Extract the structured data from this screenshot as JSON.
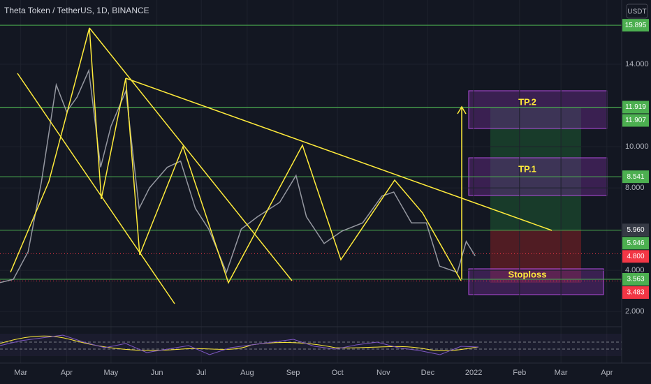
{
  "chart_data": {
    "type": "line",
    "title": "Theta Token / TetherUS, 1D, BINANCE",
    "y_unit": "USDT",
    "x": [
      -14,
      -5,
      5,
      14,
      24,
      31,
      38,
      46,
      54,
      61,
      71,
      80,
      87,
      99,
      108,
      118,
      127,
      139,
      149,
      160,
      175,
      186,
      193,
      205,
      217,
      231,
      244,
      252,
      264,
      274,
      283,
      295,
      301,
      307
    ],
    "series": [
      {
        "color": "#9598a1",
        "values": [
          3.4,
          3.56,
          4.9,
          8.3,
          13,
          11.7,
          12.4,
          13.7,
          9,
          11,
          12.7,
          7,
          8,
          9,
          9.3,
          7,
          6,
          3.9,
          6,
          6.6,
          7.3,
          8.6,
          6.6,
          5.3,
          5.9,
          6.3,
          7.6,
          7.8,
          6.3,
          6.3,
          4.2,
          3.9,
          5.4,
          4.7
        ]
      }
    ],
    "xlim": [
      -14,
      406
    ],
    "xticks": [
      {
        "value": 0,
        "label": "Mar"
      },
      {
        "value": 31,
        "label": "Apr"
      },
      {
        "value": 61,
        "label": "May"
      },
      {
        "value": 92,
        "label": "Jun"
      },
      {
        "value": 122,
        "label": "Jul"
      },
      {
        "value": 153,
        "label": "Aug"
      },
      {
        "value": 184,
        "label": "Sep"
      },
      {
        "value": 214,
        "label": "Oct"
      },
      {
        "value": 245,
        "label": "Nov"
      },
      {
        "value": 275,
        "label": "Dec"
      },
      {
        "value": 306,
        "label": "2022"
      },
      {
        "value": 337,
        "label": "Feb"
      },
      {
        "value": 365,
        "label": "Mar"
      },
      {
        "value": 396,
        "label": "Apr"
      }
    ],
    "ylim": [
      1.36,
      17.12
    ],
    "yticks": [
      {
        "value": 2,
        "label": "2.000"
      },
      {
        "value": 4,
        "label": "4.000"
      },
      {
        "value": 8,
        "label": "8.000"
      },
      {
        "value": 10,
        "label": "10.000"
      },
      {
        "value": 14,
        "label": "14.000"
      }
    ],
    "price_labels": [
      {
        "value": 15.895,
        "label": "15.895",
        "color": "#4caf50"
      },
      {
        "value": 11.919,
        "label": "11.919",
        "color": "#4caf50"
      },
      {
        "value": 11.907,
        "label": "11.907",
        "color": "#4caf50"
      },
      {
        "value": 8.541,
        "label": "8.541",
        "color": "#4caf50"
      },
      {
        "value": 5.96,
        "label": "5.960",
        "color": "#363a45"
      },
      {
        "value": 5.946,
        "label": "5.946",
        "color": "#4caf50"
      },
      {
        "value": 4.8,
        "label": "4.800",
        "color": "#f23645"
      },
      {
        "value": 3.563,
        "label": "3.563",
        "color": "#4caf50"
      },
      {
        "value": 3.483,
        "label": "3.483",
        "color": "#f23645"
      }
    ],
    "annotations": [
      "TP.2",
      "TP.1",
      "Stoploss"
    ]
  }
}
